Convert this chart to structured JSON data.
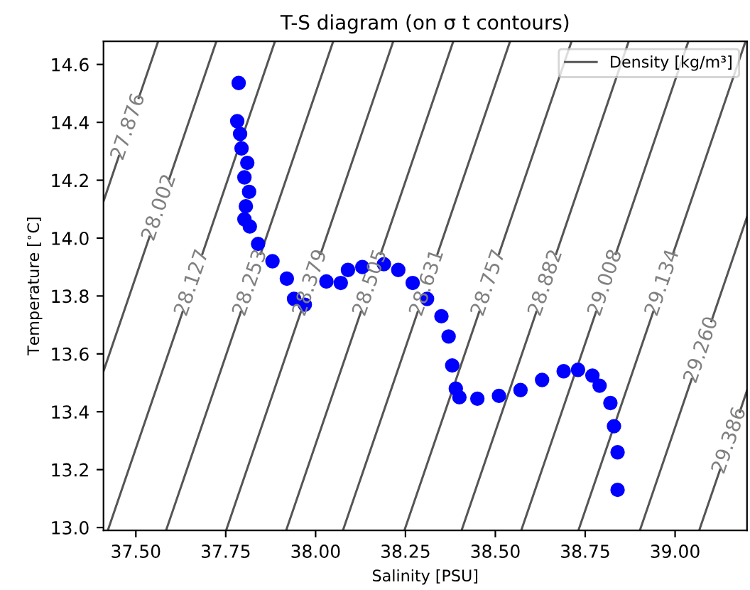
{
  "chart_data": {
    "type": "scatter",
    "title": "T-S diagram (on σ t contours)",
    "xlabel": "Salinity [PSU]",
    "ylabel": "Temperature [$^{∘}$C]",
    "xlim": [
      37.41,
      39.2
    ],
    "ylim": [
      12.99,
      14.68
    ],
    "xticks": [
      {
        "value": 37.5,
        "label": "37.50"
      },
      {
        "value": 37.75,
        "label": "37.75"
      },
      {
        "value": 38.0,
        "label": "38.00"
      },
      {
        "value": 38.25,
        "label": "38.25"
      },
      {
        "value": 38.5,
        "label": "38.50"
      },
      {
        "value": 38.75,
        "label": "38.75"
      },
      {
        "value": 39.0,
        "label": "39.00"
      }
    ],
    "yticks": [
      {
        "value": 13.0,
        "label": "13.0"
      },
      {
        "value": 13.2,
        "label": "13.2"
      },
      {
        "value": 13.4,
        "label": "13.4"
      },
      {
        "value": 13.6,
        "label": "13.6"
      },
      {
        "value": 13.8,
        "label": "13.8"
      },
      {
        "value": 14.0,
        "label": "14.0"
      },
      {
        "value": 14.2,
        "label": "14.2"
      },
      {
        "value": 14.4,
        "label": "14.4"
      },
      {
        "value": 14.6,
        "label": "14.6"
      }
    ],
    "grid": false,
    "legend": "top right",
    "series": [
      {
        "color": "#0000ff",
        "marker": "circle",
        "x": [
          37.786,
          37.782,
          37.79,
          37.794,
          37.81,
          37.802,
          37.815,
          37.806,
          37.802,
          37.817,
          37.84,
          37.88,
          37.92,
          37.94,
          37.97,
          38.03,
          38.07,
          38.09,
          38.13,
          38.19,
          38.23,
          38.27,
          38.31,
          38.35,
          38.37,
          38.38,
          38.39,
          38.4,
          38.45,
          38.51,
          38.57,
          38.63,
          38.69,
          38.73,
          38.77,
          38.79,
          38.82,
          38.83,
          38.84,
          38.84
        ],
        "values": [
          14.536,
          14.404,
          14.36,
          14.31,
          14.26,
          14.21,
          14.16,
          14.11,
          14.065,
          14.04,
          13.98,
          13.92,
          13.86,
          13.79,
          13.77,
          13.85,
          13.845,
          13.89,
          13.9,
          13.91,
          13.89,
          13.845,
          13.79,
          13.73,
          13.66,
          13.56,
          13.48,
          13.45,
          13.445,
          13.455,
          13.475,
          13.51,
          13.54,
          13.545,
          13.525,
          13.49,
          13.43,
          13.35,
          13.26,
          13.13
        ]
      },
      {
        "type": "line",
        "name": "Density [kg/m³]",
        "color": "#555555",
        "x": [
          37.41,
          37.453,
          37.48,
          37.508,
          37.562
        ],
        "values": [
          14.127,
          14.284,
          null,
          14.484,
          14.68
        ]
      },
      {
        "type": "line",
        "color": "#555555",
        "x": [
          37.41,
          37.538,
          37.566,
          37.593,
          37.724
        ],
        "values": [
          13.54,
          14.005,
          null,
          14.205,
          14.68
        ]
      },
      {
        "type": "line",
        "color": "#555555",
        "x": [
          37.422,
          37.63,
          37.657,
          37.685,
          37.887
        ],
        "values": [
          12.99,
          13.745,
          null,
          13.945,
          14.68
        ]
      },
      {
        "type": "line",
        "color": "#555555",
        "x": [
          37.584,
          37.792,
          37.819,
          37.847,
          38.049
        ],
        "values": [
          12.99,
          13.745,
          null,
          13.945,
          14.68
        ]
      },
      {
        "type": "line",
        "color": "#555555",
        "x": [
          37.751,
          37.959,
          37.986,
          38.014,
          38.216
        ],
        "values": [
          12.99,
          13.745,
          null,
          13.945,
          14.68
        ]
      },
      {
        "type": "line",
        "color": "#555555",
        "x": [
          37.918,
          38.126,
          38.153,
          38.181,
          38.383
        ],
        "values": [
          12.99,
          13.745,
          null,
          13.945,
          14.68
        ]
      },
      {
        "type": "line",
        "color": "#555555",
        "x": [
          38.076,
          38.284,
          38.311,
          38.339,
          38.541
        ],
        "values": [
          12.99,
          13.745,
          null,
          13.945,
          14.68
        ]
      },
      {
        "type": "line",
        "color": "#555555",
        "x": [
          38.247,
          38.455,
          38.482,
          38.51,
          38.712
        ],
        "values": [
          12.99,
          13.745,
          null,
          13.945,
          14.68
        ]
      },
      {
        "type": "line",
        "color": "#555555",
        "x": [
          38.406,
          38.614,
          38.641,
          38.669,
          38.871
        ],
        "values": [
          12.99,
          13.745,
          null,
          13.945,
          14.68
        ]
      },
      {
        "type": "line",
        "color": "#555555",
        "x": [
          38.572,
          38.78,
          38.807,
          38.835,
          39.037
        ],
        "values": [
          12.99,
          13.745,
          null,
          13.945,
          14.68
        ]
      },
      {
        "type": "line",
        "color": "#555555",
        "x": [
          38.731,
          38.939,
          38.966,
          38.994,
          39.196
        ],
        "values": [
          12.99,
          13.745,
          null,
          13.945,
          14.68
        ]
      },
      {
        "type": "line",
        "color": "#555555",
        "x": [
          38.902,
          39.046,
          39.074,
          39.101,
          39.2
        ],
        "values": [
          12.99,
          13.513,
          null,
          13.713,
          14.073
        ]
      },
      {
        "type": "line",
        "color": "#555555",
        "x": [
          39.067,
          39.125,
          39.152,
          39.18,
          39.2
        ],
        "values": [
          12.99,
          13.2,
          null,
          13.4,
          13.473
        ]
      }
    ],
    "annotations": [
      "27.876",
      "28.002",
      "28.127",
      "28.253",
      "28.379",
      "28.505",
      "28.631",
      "28.757",
      "28.882",
      "29.008",
      "29.134",
      "29.260",
      "29.386"
    ]
  }
}
